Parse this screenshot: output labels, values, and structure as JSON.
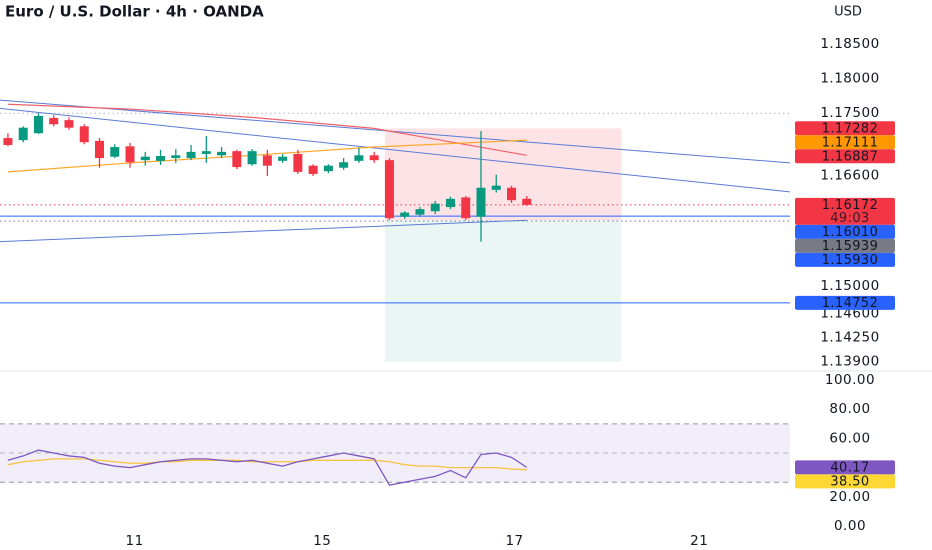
{
  "chart_data": [
    {
      "type": "candlestick",
      "title": "Euro / U.S. Dollar · 4h · OANDA",
      "currency": "USD",
      "up_color": "#089981",
      "down_color": "#f23645",
      "open": [
        1.1714,
        1.1711,
        1.1721,
        1.1743,
        1.174,
        1.1731,
        1.171,
        1.1687,
        1.1702,
        1.1682,
        1.1681,
        1.1685,
        1.1685,
        1.1691,
        1.1689,
        1.1695,
        1.1676,
        1.1689,
        1.1681,
        1.1691,
        1.1674,
        1.1666,
        1.1671,
        1.1681,
        1.1689,
        1.1682,
        1.16,
        1.1603,
        1.1608,
        1.1614,
        1.1628,
        1.16,
        1.1639,
        1.1642,
        1.1626
      ],
      "high": [
        1.1721,
        1.1731,
        1.175,
        1.1747,
        1.1744,
        1.1734,
        1.1714,
        1.1705,
        1.1707,
        1.1694,
        1.1697,
        1.1698,
        1.1704,
        1.1717,
        1.1701,
        1.1697,
        1.1698,
        1.1697,
        1.1691,
        1.1697,
        1.1676,
        1.1676,
        1.1685,
        1.17,
        1.1694,
        1.1685,
        1.1608,
        1.1614,
        1.1623,
        1.1629,
        1.163,
        1.1724,
        1.1661,
        1.1645,
        1.163
      ],
      "low": [
        1.1702,
        1.1708,
        1.172,
        1.1731,
        1.1726,
        1.1705,
        1.1671,
        1.1685,
        1.1671,
        1.1674,
        1.1675,
        1.1678,
        1.1682,
        1.1678,
        1.1685,
        1.1669,
        1.1674,
        1.1659,
        1.1678,
        1.1662,
        1.1659,
        1.1663,
        1.1668,
        1.1678,
        1.1678,
        1.1595,
        1.1597,
        1.16,
        1.1604,
        1.1611,
        1.1595,
        1.1564,
        1.1635,
        1.162,
        1.1616
      ],
      "close": [
        1.1704,
        1.1729,
        1.1746,
        1.1734,
        1.1729,
        1.1708,
        1.1685,
        1.1701,
        1.1679,
        1.1687,
        1.1688,
        1.1689,
        1.1694,
        1.1695,
        1.1694,
        1.1672,
        1.1695,
        1.1674,
        1.1687,
        1.1665,
        1.1662,
        1.1674,
        1.1679,
        1.1689,
        1.1682,
        1.1598,
        1.1606,
        1.1611,
        1.1619,
        1.1626,
        1.1598,
        1.1642,
        1.1645,
        1.1624,
        1.16172
      ],
      "xlim": [
        -0.52,
        51.25
      ],
      "ylim": [
        1.1378,
        1.1914
      ],
      "yticks": [
        {
          "value": 1.185,
          "label": "1.18500"
        },
        {
          "value": 1.18,
          "label": "1.18000"
        },
        {
          "value": 1.175,
          "label": "1.17500"
        },
        {
          "value": 1.166,
          "label": "1.16600"
        },
        {
          "value": 1.15,
          "label": "1.15000"
        },
        {
          "value": 1.146,
          "label": "1.14600"
        },
        {
          "value": 1.1425,
          "label": "1.14250"
        },
        {
          "value": 1.139,
          "label": "1.13900"
        }
      ],
      "lines": [
        {
          "color": "#f0616b",
          "x": [
            0,
            8,
            16,
            24,
            34
          ],
          "values": [
            1.1763,
            1.1756,
            1.1744,
            1.1728,
            1.1689
          ]
        },
        {
          "color": "#ffa726",
          "x": [
            0,
            8,
            16,
            24,
            34
          ],
          "values": [
            1.1665,
            1.1678,
            1.1689,
            1.1701,
            1.1711
          ]
        }
      ],
      "trendlines": [
        {
          "color": "#5b7bd5",
          "x": [
            -0.52,
            51.25
          ],
          "values": [
            1.1769,
            1.1678
          ]
        },
        {
          "color": "#5b7bd5",
          "x": [
            -0.52,
            51.25
          ],
          "values": [
            1.1757,
            1.1636
          ]
        },
        {
          "color": "#5b7bd5",
          "x": [
            -0.52,
            34
          ],
          "values": [
            1.1564,
            1.1595
          ]
        }
      ],
      "hlines": [
        {
          "value": 1.175,
          "color": "#b2b5be",
          "style": "dotted"
        },
        {
          "value": 1.16172,
          "color": "#f23645",
          "style": "dotted"
        },
        {
          "value": 1.15939,
          "color": "#787b86",
          "style": "dotted"
        },
        {
          "value": 1.1601,
          "color": "#2962ff",
          "style": "solid"
        },
        {
          "value": 1.14752,
          "color": "#2962ff",
          "style": "solid"
        }
      ],
      "position": {
        "x": [
          24.7,
          40.2
        ],
        "entry": 1.1595,
        "stop": 1.1728,
        "target": 1.139,
        "stop_color": "rgba(242,54,69,0.14)",
        "target_color": "rgba(8,153,129,0.09)"
      },
      "price_labels": {
        "values": [
          1.17282,
          1.17111,
          1.16887,
          1.16172,
          1.1601,
          1.15939,
          1.1593,
          1.14752
        ],
        "value_labels": [
          "1.17282",
          "1.17111",
          "1.16887",
          "1.16172",
          "1.16010",
          "1.15939",
          "1.15930",
          "1.14752"
        ],
        "colors": [
          "#f23645",
          "#ff9800",
          "#f23645",
          "#f23645",
          "#2962ff",
          "#787b86",
          "#2962ff",
          "#2962ff"
        ],
        "text_colors": [
          "#ffffff",
          "#131722",
          "#ffffff",
          "#ffffff",
          "#ffffff",
          "#ffffff",
          "#ffffff",
          "#ffffff"
        ]
      },
      "countdown": "49:03",
      "countdown_index": 3
    },
    {
      "type": "line",
      "series": [
        {
          "color": "#7e57c2",
          "values": [
            45,
            48,
            52,
            50,
            48,
            47,
            43,
            41,
            40,
            42,
            44,
            45,
            46,
            46,
            45,
            44,
            45,
            43,
            41,
            44,
            46,
            48,
            50,
            48,
            46,
            28,
            30,
            32,
            34,
            38,
            33,
            49,
            50,
            47,
            40.17
          ]
        },
        {
          "color": "#f6c342",
          "values": [
            42,
            44,
            45,
            46,
            46,
            46,
            45,
            44,
            43,
            43,
            44,
            44,
            45,
            45,
            45,
            45,
            44,
            44,
            44,
            44,
            45,
            45,
            45,
            45,
            45,
            44,
            42,
            41,
            41,
            40,
            40,
            40,
            40,
            39,
            38.5
          ]
        }
      ],
      "band": [
        30,
        70
      ],
      "band_color": "rgba(126,87,194,0.1)",
      "midline": 50,
      "xlim": [
        -0.52,
        51.25
      ],
      "ylim": [
        -9.6,
        105.5
      ],
      "yticks": [
        {
          "value": 100,
          "label": "100.00"
        },
        {
          "value": 80,
          "label": "80.00"
        },
        {
          "value": 60,
          "label": "60.00"
        },
        {
          "value": 20,
          "label": "20.00"
        },
        {
          "value": 0,
          "label": "0.00"
        }
      ],
      "xticks": [
        {
          "value": 8.3,
          "label": "11"
        },
        {
          "value": 20.6,
          "label": "15"
        },
        {
          "value": 33.2,
          "label": "17"
        },
        {
          "value": 45.3,
          "label": "21"
        }
      ],
      "price_labels": {
        "values": [
          40.17,
          38.5
        ],
        "value_labels": [
          "40.17",
          "38.50"
        ],
        "colors": [
          "#7e57c2",
          "#fdd835"
        ],
        "text_colors": [
          "#ffffff",
          "#131722"
        ]
      }
    }
  ]
}
